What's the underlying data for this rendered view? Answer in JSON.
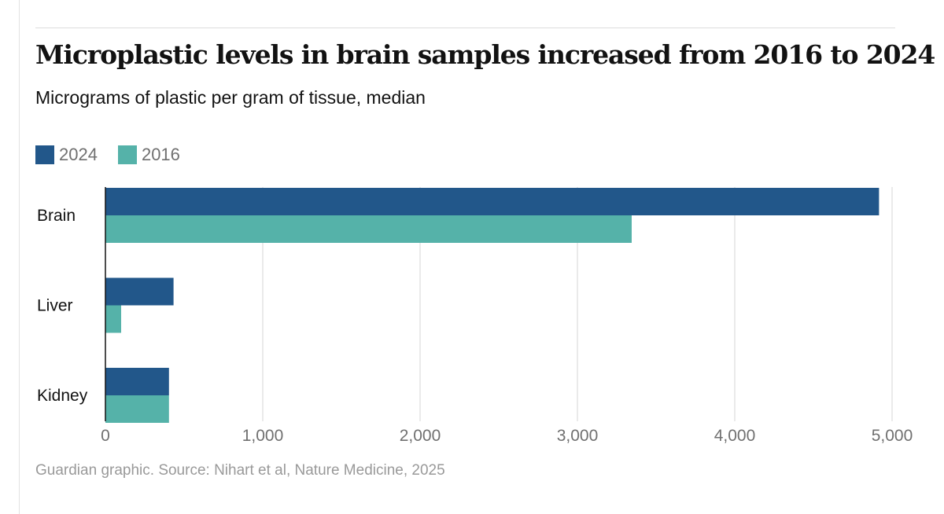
{
  "title": "Microplastic levels in brain samples increased from 2016 to 2024",
  "subtitle": "Micrograms of plastic per gram of tissue, median",
  "footer": "Guardian graphic. Source: Nihart et al, Nature Medicine, 2025",
  "legend": [
    {
      "label": "2024",
      "color": "#22578a"
    },
    {
      "label": "2016",
      "color": "#55b2a9"
    }
  ],
  "chart_data": {
    "type": "bar",
    "orientation": "horizontal",
    "title": "Microplastic levels in brain samples increased from 2016 to 2024",
    "subtitle": "Micrograms of plastic per gram of tissue, median",
    "categories": [
      "Brain",
      "Liver",
      "Kidney"
    ],
    "series": [
      {
        "name": "2024",
        "color": "#22578a",
        "values": [
          4917,
          433,
          404
        ]
      },
      {
        "name": "2016",
        "color": "#55b2a9",
        "values": [
          3345,
          100,
          404
        ]
      }
    ],
    "xlim": [
      0,
      5000
    ],
    "xticks": [
      0,
      1000,
      2000,
      3000,
      4000,
      5000
    ],
    "xtick_labels": [
      "0",
      "1,000",
      "2,000",
      "3,000",
      "4,000",
      "5,000"
    ],
    "xlabel": "",
    "ylabel": "",
    "grid": "vertical",
    "legend_position": "top-left"
  }
}
